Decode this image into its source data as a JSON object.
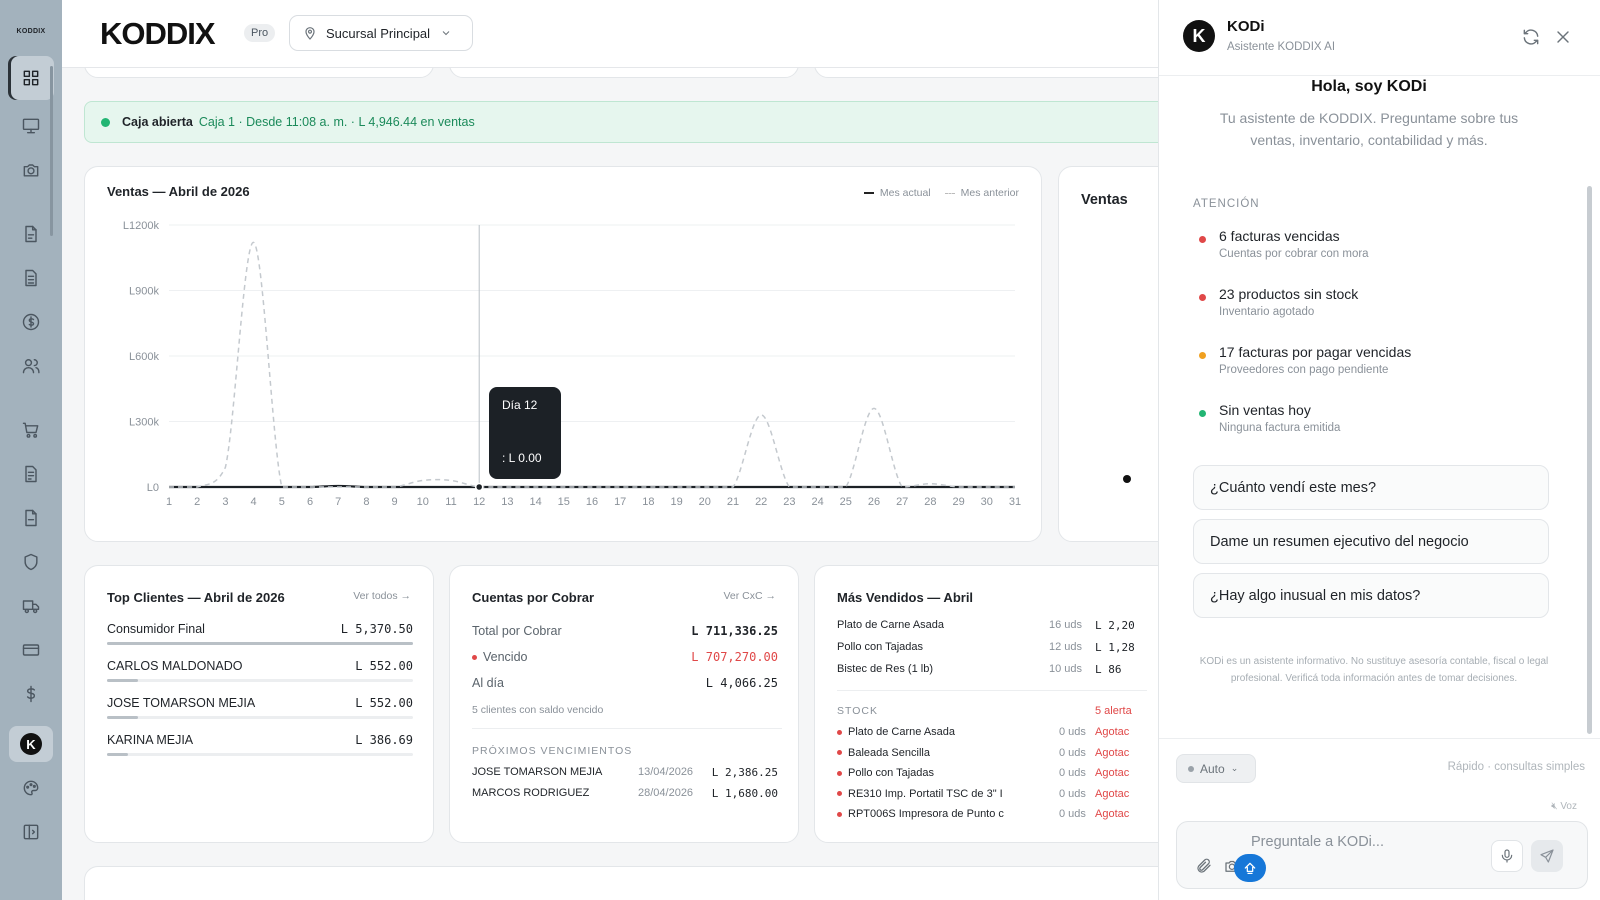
{
  "sidebar": {
    "logo": "KODDIX",
    "icons": [
      "dashboard-icon",
      "monitor-icon",
      "camera-icon",
      "file-icon",
      "document-icon",
      "dollar-circle-icon",
      "users-icon",
      "cart-icon",
      "invoice-icon",
      "report-icon",
      "shield-icon",
      "truck-icon",
      "card-icon",
      "dollar-icon",
      "kodi-icon",
      "palette-icon",
      "collapse-icon"
    ]
  },
  "header": {
    "brand": "KODDIX",
    "plan": "Pro",
    "branch": "Sucursal Principal"
  },
  "cash": {
    "title": "Caja abierta",
    "detail": "Caja 1 · Desde 11:08 a. m. · L 4,946.44 en ventas"
  },
  "sales_chart": {
    "title": "Ventas — Abril de 2026",
    "legend_current": "Mes actual",
    "legend_previous": "Mes anterior",
    "tooltip_title": "Día 12",
    "tooltip_value": ": L 0.00"
  },
  "chart_data": {
    "type": "line",
    "title": "Ventas — Abril de 2026",
    "x": [
      1,
      2,
      3,
      4,
      5,
      6,
      7,
      8,
      9,
      10,
      11,
      12,
      13,
      14,
      15,
      16,
      17,
      18,
      19,
      20,
      21,
      22,
      23,
      24,
      25,
      26,
      27,
      28,
      29,
      30,
      31
    ],
    "y_ticks": [
      "L0",
      "L300k",
      "L600k",
      "L900k",
      "L1200k"
    ],
    "ylim": [
      0,
      1200000
    ],
    "series": [
      {
        "name": "Mes actual",
        "style": "solid",
        "values": [
          0,
          0,
          0,
          0,
          0,
          0,
          4946,
          0,
          0,
          0,
          0,
          0,
          0,
          0,
          0,
          0,
          0,
          0,
          0,
          0,
          0,
          0,
          0,
          0,
          0,
          0,
          0,
          0,
          0,
          0,
          0
        ]
      },
      {
        "name": "Mes anterior",
        "style": "dashed",
        "values": [
          0,
          0,
          90000,
          1120000,
          0,
          0,
          0,
          0,
          0,
          30000,
          30000,
          0,
          0,
          0,
          0,
          0,
          0,
          0,
          0,
          0,
          0,
          330000,
          0,
          0,
          0,
          360000,
          0,
          15000,
          0,
          0,
          0
        ]
      }
    ],
    "highlight_x": 12
  },
  "ventas_card": {
    "title": "Ventas"
  },
  "top_clients": {
    "title": "Top Clientes — Abril de 2026",
    "link": "Ver todos →",
    "rows": [
      {
        "name": "Consumidor Final",
        "value": "L 5,370.50",
        "share": 1.0
      },
      {
        "name": "CARLOS MALDONADO",
        "value": "L 552.00",
        "share": 0.1
      },
      {
        "name": "JOSE TOMARSON MEJIA",
        "value": "L 552.00",
        "share": 0.1
      },
      {
        "name": "KARINA MEJIA",
        "value": "L 386.69",
        "share": 0.07
      }
    ]
  },
  "receivables": {
    "title": "Cuentas por Cobrar",
    "link": "Ver CxC →",
    "total_label": "Total por Cobrar",
    "total_value": "L 711,336.25",
    "overdue_label": "Vencido",
    "overdue_value": "L 707,270.00",
    "current_label": "Al día",
    "current_value": "L 4,066.25",
    "note": "5 clientes con saldo vencido",
    "upcoming_title": "PRÓXIMOS VENCIMIENTOS",
    "upcoming": [
      {
        "name": "JOSE TOMARSON MEJIA",
        "date": "13/04/2026",
        "value": "L 2,386.25"
      },
      {
        "name": "MARCOS RODRIGUEZ",
        "date": "28/04/2026",
        "value": "L 1,680.00"
      }
    ]
  },
  "best_sellers": {
    "title": "Más Vendidos — Abril",
    "rows": [
      {
        "name": "Plato de Carne Asada",
        "qty": "16 uds",
        "value": "L 2,20"
      },
      {
        "name": "Pollo con Tajadas",
        "qty": "12 uds",
        "value": "L 1,28"
      },
      {
        "name": "Bistec de Res (1 lb)",
        "qty": "10 uds",
        "value": "L 86"
      }
    ],
    "stock_title": "STOCK",
    "stock_alerts": "5 alerta",
    "stock": [
      {
        "name": "Plato de Carne Asada",
        "qty": "0 uds",
        "status": "Agotac"
      },
      {
        "name": "Baleada Sencilla",
        "qty": "0 uds",
        "status": "Agotac"
      },
      {
        "name": "Pollo con Tajadas",
        "qty": "0 uds",
        "status": "Agotac"
      },
      {
        "name": "RE310 Imp. Portatil TSC de 3\" I",
        "qty": "0 uds",
        "status": "Agotac"
      },
      {
        "name": "RPT006S Impresora de Punto c",
        "qty": "0 uds",
        "status": "Agotac"
      }
    ]
  },
  "assistant": {
    "name": "KODi",
    "subtitle": "Asistente KODDIX AI",
    "greeting": "Hola, soy KODi",
    "intro": "Tu asistente de KODDIX. Preguntame sobre tus ventas, inventario, contabilidad y más.",
    "attention_title": "ATENCIÓN",
    "alerts": [
      {
        "title": "6 facturas vencidas",
        "sub": "Cuentas por cobrar con mora",
        "color": "#e04848"
      },
      {
        "title": "23 productos sin stock",
        "sub": "Inventario agotado",
        "color": "#e04848"
      },
      {
        "title": "17 facturas por pagar vencidas",
        "sub": "Proveedores con pago pendiente",
        "color": "#f0a020"
      },
      {
        "title": "Sin ventas hoy",
        "sub": "Ninguna factura emitida",
        "color": "#22b573"
      }
    ],
    "suggestions": [
      "¿Cuánto vendí este mes?",
      "Dame un resumen ejecutivo del negocio",
      "¿Hay algo inusual en mis datos?"
    ],
    "disclaimer": "KODi es un asistente informativo. No sustituye asesoría contable, fiscal o legal profesional. Verificá toda información antes de tomar decisiones.",
    "mode": "Auto",
    "mode_hint": "Rápido · consultas simples",
    "voice_label": "Voz",
    "input_placeholder": "Preguntale a KODi..."
  }
}
